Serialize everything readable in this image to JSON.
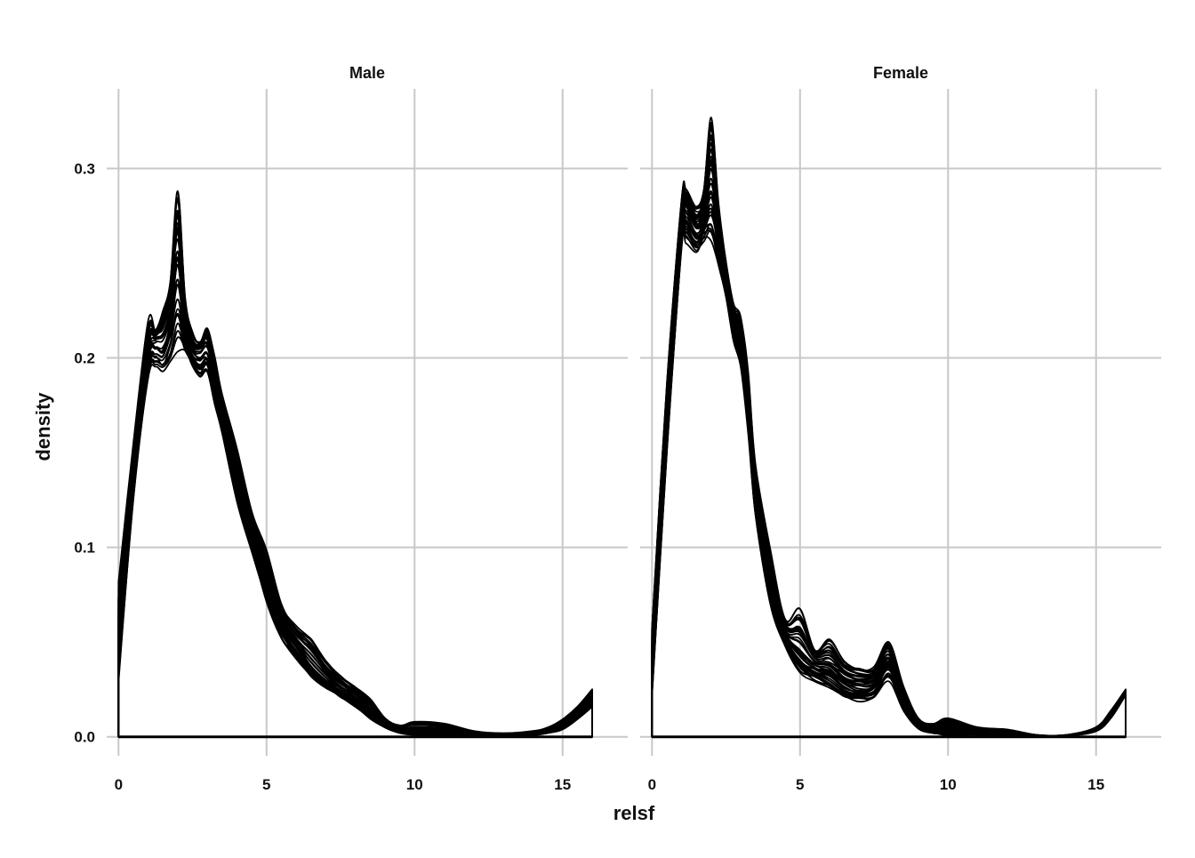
{
  "chart_data": {
    "type": "line",
    "subtype": "faceted density curves (many overlaid draws)",
    "xlabel": "relsf",
    "ylabel": "density",
    "xlim": [
      -0.4,
      17.2
    ],
    "ylim": [
      -0.01,
      0.342
    ],
    "x_ticks": [
      0,
      5,
      10,
      15
    ],
    "y_ticks": [
      0.0,
      0.1,
      0.2,
      0.3
    ],
    "x_tick_labels": [
      "0",
      "5",
      "10",
      "15"
    ],
    "y_tick_labels": [
      "0.0",
      "0.1",
      "0.2",
      "0.3"
    ],
    "grid": true,
    "line_color": "#000000",
    "grid_color": "#c8c8c8",
    "facets": [
      {
        "label": "Male",
        "x": [
          0,
          0.5,
          1.0,
          1.25,
          1.5,
          1.75,
          2.0,
          2.25,
          2.5,
          2.75,
          3.0,
          3.25,
          3.5,
          4.0,
          4.5,
          5.0,
          5.5,
          6.0,
          6.5,
          7.0,
          7.5,
          8.0,
          8.5,
          9.0,
          9.5,
          10.0,
          11.0,
          12.0,
          13.0,
          14.0,
          14.5,
          15.0,
          15.5,
          16.0
        ],
        "y_low": [
          0.032,
          0.125,
          0.19,
          0.196,
          0.192,
          0.198,
          0.205,
          0.203,
          0.196,
          0.19,
          0.192,
          0.175,
          0.16,
          0.125,
          0.098,
          0.072,
          0.052,
          0.042,
          0.032,
          0.026,
          0.021,
          0.016,
          0.01,
          0.005,
          0.002,
          0.001,
          0.001,
          0.0005,
          0.0003,
          0.0008,
          0.002,
          0.004,
          0.009,
          0.016
        ],
        "y_mid": [
          0.055,
          0.14,
          0.205,
          0.212,
          0.215,
          0.23,
          0.265,
          0.218,
          0.206,
          0.205,
          0.208,
          0.19,
          0.168,
          0.135,
          0.11,
          0.082,
          0.06,
          0.048,
          0.038,
          0.03,
          0.024,
          0.019,
          0.013,
          0.006,
          0.003,
          0.002,
          0.002,
          0.001,
          0.0005,
          0.001,
          0.003,
          0.006,
          0.012,
          0.02
        ],
        "y_high": [
          0.08,
          0.155,
          0.218,
          0.214,
          0.225,
          0.24,
          0.286,
          0.232,
          0.214,
          0.208,
          0.216,
          0.2,
          0.18,
          0.152,
          0.118,
          0.098,
          0.07,
          0.058,
          0.052,
          0.04,
          0.032,
          0.026,
          0.02,
          0.01,
          0.006,
          0.008,
          0.007,
          0.003,
          0.002,
          0.003,
          0.005,
          0.009,
          0.016,
          0.025
        ]
      },
      {
        "label": "Female",
        "x": [
          0,
          0.5,
          1.0,
          1.15,
          1.5,
          1.75,
          2.0,
          2.25,
          2.5,
          2.75,
          3.0,
          3.25,
          3.5,
          4.0,
          4.5,
          5.0,
          5.5,
          6.0,
          6.5,
          7.0,
          7.5,
          8.0,
          8.5,
          9.0,
          9.5,
          10.0,
          11.0,
          12.0,
          13.0,
          14.0,
          15.0,
          15.5,
          16.0
        ],
        "y_low": [
          0.022,
          0.15,
          0.258,
          0.262,
          0.256,
          0.262,
          0.262,
          0.248,
          0.232,
          0.21,
          0.195,
          0.16,
          0.115,
          0.07,
          0.048,
          0.035,
          0.03,
          0.026,
          0.021,
          0.019,
          0.02,
          0.03,
          0.014,
          0.004,
          0.002,
          0.001,
          0.001,
          0.0005,
          0.0002,
          0.0005,
          0.003,
          0.01,
          0.022
        ],
        "y_mid": [
          0.04,
          0.17,
          0.275,
          0.282,
          0.27,
          0.276,
          0.3,
          0.27,
          0.24,
          0.222,
          0.21,
          0.178,
          0.13,
          0.085,
          0.055,
          0.045,
          0.038,
          0.036,
          0.03,
          0.028,
          0.029,
          0.042,
          0.02,
          0.006,
          0.003,
          0.004,
          0.002,
          0.001,
          0.0005,
          0.0008,
          0.004,
          0.012,
          0.024
        ],
        "y_high": [
          0.058,
          0.185,
          0.284,
          0.288,
          0.28,
          0.29,
          0.326,
          0.28,
          0.25,
          0.228,
          0.222,
          0.192,
          0.142,
          0.098,
          0.062,
          0.068,
          0.046,
          0.05,
          0.04,
          0.036,
          0.037,
          0.051,
          0.026,
          0.01,
          0.007,
          0.01,
          0.005,
          0.004,
          0.001,
          0.001,
          0.005,
          0.014,
          0.025
        ]
      }
    ]
  }
}
